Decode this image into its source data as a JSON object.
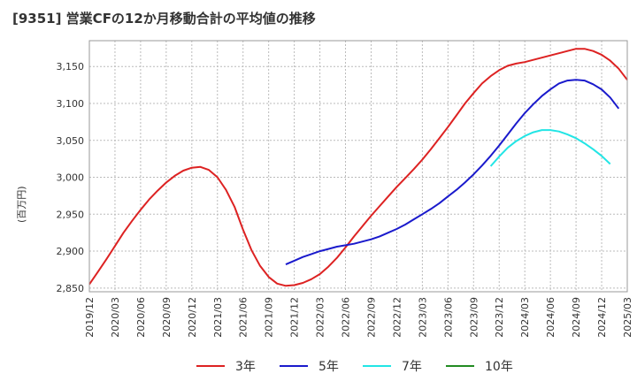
{
  "title": "[9351]  営業CFの12か月移動合計の平均値の推移",
  "ylabel": "(百万円)",
  "chart_data": {
    "type": "line",
    "title": "[9351]  営業CFの12か月移動合計の平均値の推移",
    "ylabel": "(百万円)",
    "xlabel": "",
    "ylim": [
      2845,
      3185
    ],
    "yticks": [
      2850,
      2900,
      2950,
      3000,
      3050,
      3100,
      3150
    ],
    "ytick_labels": [
      "2,850",
      "2,900",
      "2,950",
      "3,000",
      "3,050",
      "3,100",
      "3,150"
    ],
    "x_range": [
      "2019-12",
      "2025-03"
    ],
    "xtick_labels": [
      "2019/12",
      "2020/03",
      "2020/06",
      "2020/09",
      "2020/12",
      "2021/03",
      "2021/06",
      "2021/09",
      "2021/12",
      "2022/03",
      "2022/06",
      "2022/09",
      "2022/12",
      "2023/03",
      "2023/06",
      "2023/09",
      "2023/12",
      "2024/03",
      "2024/06",
      "2024/09",
      "2024/12",
      "2025/03"
    ],
    "grid": true,
    "legend_position": "bottom",
    "series": [
      {
        "name": "3年",
        "color": "#dd2222",
        "points": [
          [
            "2019-12",
            2855
          ],
          [
            "2020-01",
            2872
          ],
          [
            "2020-02",
            2889
          ],
          [
            "2020-03",
            2907
          ],
          [
            "2020-04",
            2925
          ],
          [
            "2020-05",
            2941
          ],
          [
            "2020-06",
            2956
          ],
          [
            "2020-07",
            2970
          ],
          [
            "2020-08",
            2982
          ],
          [
            "2020-09",
            2993
          ],
          [
            "2020-10",
            3002
          ],
          [
            "2020-11",
            3009
          ],
          [
            "2020-12",
            3013
          ],
          [
            "2021-01",
            3014
          ],
          [
            "2021-02",
            3010
          ],
          [
            "2021-03",
            3000
          ],
          [
            "2021-04",
            2983
          ],
          [
            "2021-05",
            2960
          ],
          [
            "2021-06",
            2929
          ],
          [
            "2021-07",
            2901
          ],
          [
            "2021-08",
            2880
          ],
          [
            "2021-09",
            2865
          ],
          [
            "2021-10",
            2856
          ],
          [
            "2021-11",
            2853
          ],
          [
            "2021-12",
            2854
          ],
          [
            "2022-01",
            2857
          ],
          [
            "2022-02",
            2862
          ],
          [
            "2022-03",
            2869
          ],
          [
            "2022-04",
            2879
          ],
          [
            "2022-05",
            2891
          ],
          [
            "2022-06",
            2905
          ],
          [
            "2022-07",
            2920
          ],
          [
            "2022-08",
            2934
          ],
          [
            "2022-09",
            2948
          ],
          [
            "2022-10",
            2961
          ],
          [
            "2022-11",
            2974
          ],
          [
            "2022-12",
            2987
          ],
          [
            "2023-01",
            2999
          ],
          [
            "2023-02",
            3011
          ],
          [
            "2023-03",
            3024
          ],
          [
            "2023-04",
            3038
          ],
          [
            "2023-05",
            3053
          ],
          [
            "2023-06",
            3068
          ],
          [
            "2023-07",
            3084
          ],
          [
            "2023-08",
            3100
          ],
          [
            "2023-09",
            3114
          ],
          [
            "2023-10",
            3127
          ],
          [
            "2023-11",
            3137
          ],
          [
            "2023-12",
            3145
          ],
          [
            "2024-01",
            3151
          ],
          [
            "2024-02",
            3154
          ],
          [
            "2024-03",
            3156
          ],
          [
            "2024-04",
            3159
          ],
          [
            "2024-05",
            3162
          ],
          [
            "2024-06",
            3165
          ],
          [
            "2024-07",
            3168
          ],
          [
            "2024-08",
            3171
          ],
          [
            "2024-09",
            3174
          ],
          [
            "2024-10",
            3174
          ],
          [
            "2024-11",
            3171
          ],
          [
            "2024-12",
            3166
          ],
          [
            "2025-01",
            3158
          ],
          [
            "2025-02",
            3147
          ],
          [
            "2025-03",
            3132
          ]
        ]
      },
      {
        "name": "5年",
        "color": "#1a1acc",
        "points": [
          [
            "2021-11",
            2882
          ],
          [
            "2021-12",
            2887
          ],
          [
            "2022-01",
            2892
          ],
          [
            "2022-02",
            2896
          ],
          [
            "2022-03",
            2900
          ],
          [
            "2022-04",
            2903
          ],
          [
            "2022-05",
            2906
          ],
          [
            "2022-06",
            2908
          ],
          [
            "2022-07",
            2910
          ],
          [
            "2022-08",
            2913
          ],
          [
            "2022-09",
            2916
          ],
          [
            "2022-10",
            2920
          ],
          [
            "2022-11",
            2925
          ],
          [
            "2022-12",
            2930
          ],
          [
            "2023-01",
            2936
          ],
          [
            "2023-02",
            2943
          ],
          [
            "2023-03",
            2950
          ],
          [
            "2023-04",
            2957
          ],
          [
            "2023-05",
            2965
          ],
          [
            "2023-06",
            2974
          ],
          [
            "2023-07",
            2983
          ],
          [
            "2023-08",
            2993
          ],
          [
            "2023-09",
            3004
          ],
          [
            "2023-10",
            3016
          ],
          [
            "2023-11",
            3029
          ],
          [
            "2023-12",
            3043
          ],
          [
            "2024-01",
            3058
          ],
          [
            "2024-02",
            3073
          ],
          [
            "2024-03",
            3087
          ],
          [
            "2024-04",
            3099
          ],
          [
            "2024-05",
            3110
          ],
          [
            "2024-06",
            3119
          ],
          [
            "2024-07",
            3127
          ],
          [
            "2024-08",
            3131
          ],
          [
            "2024-09",
            3132
          ],
          [
            "2024-10",
            3131
          ],
          [
            "2024-11",
            3126
          ],
          [
            "2024-12",
            3119
          ],
          [
            "2025-01",
            3108
          ],
          [
            "2025-02",
            3093
          ]
        ]
      },
      {
        "name": "7年",
        "color": "#22e5e5",
        "points": [
          [
            "2023-11",
            3015
          ],
          [
            "2023-12",
            3028
          ],
          [
            "2024-01",
            3040
          ],
          [
            "2024-02",
            3049
          ],
          [
            "2024-03",
            3056
          ],
          [
            "2024-04",
            3061
          ],
          [
            "2024-05",
            3064
          ],
          [
            "2024-06",
            3064
          ],
          [
            "2024-07",
            3062
          ],
          [
            "2024-08",
            3058
          ],
          [
            "2024-09",
            3053
          ],
          [
            "2024-10",
            3046
          ],
          [
            "2024-11",
            3038
          ],
          [
            "2024-12",
            3029
          ],
          [
            "2025-01",
            3018
          ]
        ]
      },
      {
        "name": "10年",
        "color": "#228b22",
        "points": []
      }
    ]
  }
}
